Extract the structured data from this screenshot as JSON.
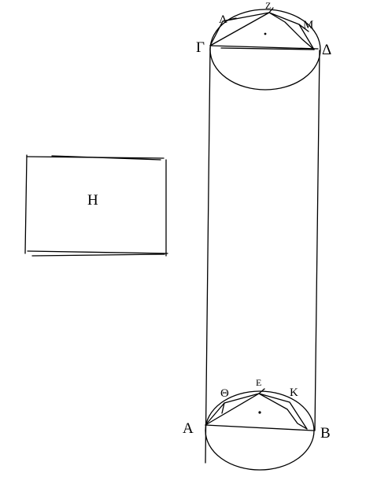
{
  "labels": {
    "rectangle": "Η",
    "lower_left": "Α",
    "lower_right": "Β",
    "lower_top": "Ε",
    "lower_left_mid": "Θ",
    "lower_right_mid": "Κ",
    "upper_left": "Γ",
    "upper_right": "Δ",
    "upper_top": "Ζ",
    "upper_left_mid": "Λ",
    "upper_right_mid": "Μ"
  }
}
